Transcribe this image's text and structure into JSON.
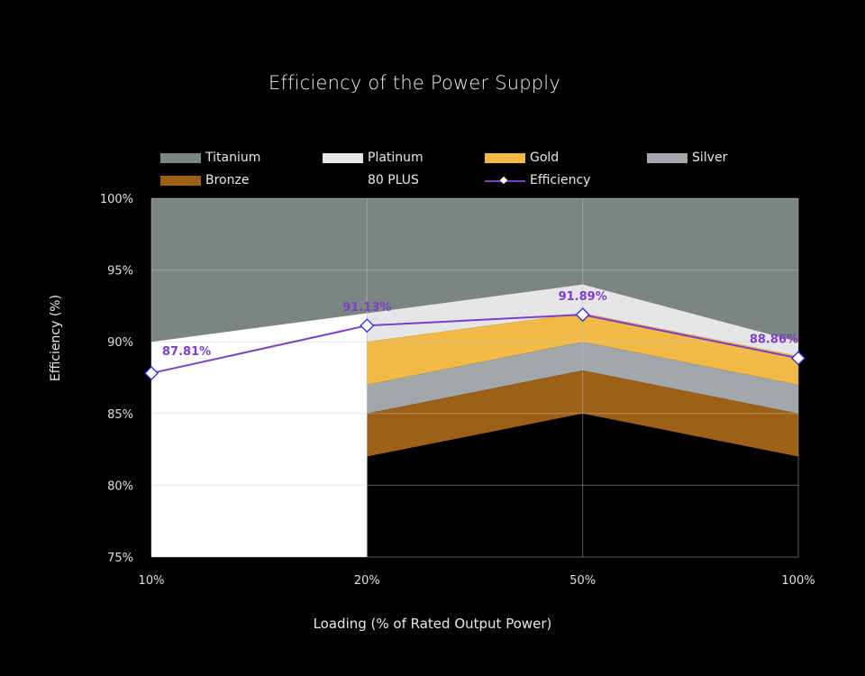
{
  "chart_data": {
    "type": "area",
    "title": "Efficiency of the Power Supply",
    "xlabel": "Loading (% of Rated Output Power)",
    "ylabel": "Efficiency (%)",
    "categories": [
      "10%",
      "20%",
      "50%",
      "100%"
    ],
    "ylim": [
      75,
      100
    ],
    "yticks": [
      75,
      80,
      85,
      90,
      95,
      100
    ],
    "ytick_labels": [
      "75%",
      "80%",
      "85%",
      "90%",
      "95%",
      "100%"
    ],
    "grid": true,
    "legend_position": "top",
    "bands": [
      {
        "name": "Titanium",
        "color": "#7b8680",
        "lower": [
          90,
          92,
          94,
          90
        ],
        "upper": [
          100,
          100,
          100,
          100
        ]
      },
      {
        "name": "Platinum",
        "color": "#e6e6e8",
        "lower": [
          null,
          90,
          92,
          89
        ],
        "upper": [
          null,
          92,
          94,
          90
        ]
      },
      {
        "name": "Gold",
        "color": "#f2b946",
        "lower": [
          null,
          87,
          90,
          87
        ],
        "upper": [
          null,
          90,
          92,
          89
        ]
      },
      {
        "name": "Silver",
        "color": "#a2a7aa",
        "lower": [
          null,
          85,
          88,
          85
        ],
        "upper": [
          null,
          87,
          90,
          87
        ]
      },
      {
        "name": "Bronze",
        "color": "#9c6116",
        "lower": [
          null,
          82,
          85,
          82
        ],
        "upper": [
          null,
          85,
          88,
          85
        ]
      },
      {
        "name": "80 PLUS",
        "color": "#ffffff",
        "lower": [
          75,
          75,
          null,
          null
        ],
        "upper": [
          90,
          92,
          null,
          null
        ]
      }
    ],
    "series": [
      {
        "name": "Efficiency",
        "type": "line",
        "color": "#7e3fc8",
        "marker": "diamond",
        "values": [
          87.81,
          91.13,
          91.89,
          88.86
        ],
        "data_labels": [
          "87.81%",
          "91.13%",
          "91.89%",
          "88.86%"
        ]
      }
    ]
  },
  "legend": [
    {
      "label": "Titanium",
      "swatch": "#7b8680",
      "kind": "box"
    },
    {
      "label": "Platinum",
      "swatch": "#e6e6e8",
      "kind": "box"
    },
    {
      "label": "Gold",
      "swatch": "#f2b946",
      "kind": "box"
    },
    {
      "label": "Silver",
      "swatch": "#a2a7aa",
      "kind": "box"
    },
    {
      "label": "Bronze",
      "swatch": "#9c6116",
      "kind": "box"
    },
    {
      "label": "80 PLUS",
      "swatch": "#ffffff",
      "kind": "none"
    },
    {
      "label": "Efficiency",
      "swatch": "#7e3fc8",
      "kind": "line"
    }
  ]
}
